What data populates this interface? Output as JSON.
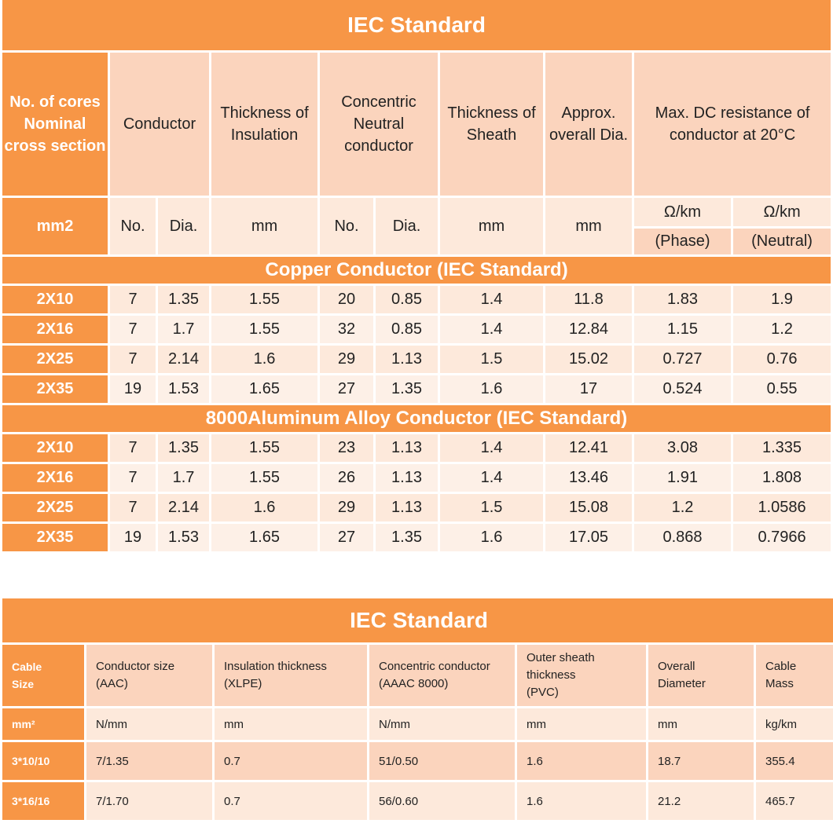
{
  "table1": {
    "title": "IEC Standard",
    "header": {
      "first": [
        "No. of cores",
        "Nominal",
        "cross section"
      ],
      "conductor": "Conductor",
      "insulation": [
        "Thickness of",
        "Insulation"
      ],
      "neutral": [
        "Concentric",
        "Neutral",
        "conductor"
      ],
      "sheath": [
        "Thickness of",
        "Sheath"
      ],
      "overall": [
        "Approx.",
        "overall Dia."
      ],
      "resistance": [
        "Max. DC resistance of",
        "conductor at 20°C"
      ]
    },
    "units": {
      "first": "mm2",
      "cond_no": "No.",
      "cond_dia": "Dia.",
      "insulation": "mm",
      "neu_no": "No.",
      "neu_dia": "Dia.",
      "sheath": "mm",
      "overall": "mm",
      "res_phase_unit": "Ω/km",
      "res_neutral_unit": "Ω/km",
      "res_phase_label": "(Phase)",
      "res_neutral_label": "(Neutral)"
    },
    "sections": [
      {
        "title": "Copper Conductor (IEC Standard)",
        "rows": [
          [
            "2X10",
            "7",
            "1.35",
            "1.55",
            "20",
            "0.85",
            "1.4",
            "11.8",
            "1.83",
            "1.9"
          ],
          [
            "2X16",
            "7",
            "1.7",
            "1.55",
            "32",
            "0.85",
            "1.4",
            "12.84",
            "1.15",
            "1.2"
          ],
          [
            "2X25",
            "7",
            "2.14",
            "1.6",
            "29",
            "1.13",
            "1.5",
            "15.02",
            "0.727",
            "0.76"
          ],
          [
            "2X35",
            "19",
            "1.53",
            "1.65",
            "27",
            "1.35",
            "1.6",
            "17",
            "0.524",
            "0.55"
          ]
        ]
      },
      {
        "title": "8000Aluminum Alloy Conductor (IEC Standard)",
        "rows": [
          [
            "2X10",
            "7",
            "1.35",
            "1.55",
            "23",
            "1.13",
            "1.4",
            "12.41",
            "3.08",
            "1.335"
          ],
          [
            "2X16",
            "7",
            "1.7",
            "1.55",
            "26",
            "1.13",
            "1.4",
            "13.46",
            "1.91",
            "1.808"
          ],
          [
            "2X25",
            "7",
            "2.14",
            "1.6",
            "29",
            "1.13",
            "1.5",
            "15.08",
            "1.2",
            "1.0586"
          ],
          [
            "2X35",
            "19",
            "1.53",
            "1.65",
            "27",
            "1.35",
            "1.6",
            "17.05",
            "0.868",
            "0.7966"
          ]
        ]
      }
    ]
  },
  "table2": {
    "title": "IEC Standard",
    "header": [
      [
        "Cable",
        "Size"
      ],
      [
        "Conductor size",
        "(AAC)"
      ],
      [
        "Insulation thickness",
        "(XLPE)"
      ],
      [
        "Concentric conductor",
        "(AAAC 8000)"
      ],
      [
        "Outer sheath",
        "thickness",
        "(PVC)"
      ],
      [
        "Overall",
        "Diameter"
      ],
      [
        "Cable",
        "Mass"
      ]
    ],
    "units": [
      "mm²",
      "N/mm",
      "mm",
      "N/mm",
      "mm",
      "mm",
      "kg/km"
    ],
    "rows": [
      [
        "3*10/10",
        "7/1.35",
        "0.7",
        "51/0.50",
        "1.6",
        "18.7",
        "355.4"
      ],
      [
        "3*16/16",
        "7/1.70",
        "0.7",
        "56/0.60",
        "1.6",
        "21.2",
        "465.7"
      ]
    ]
  }
}
